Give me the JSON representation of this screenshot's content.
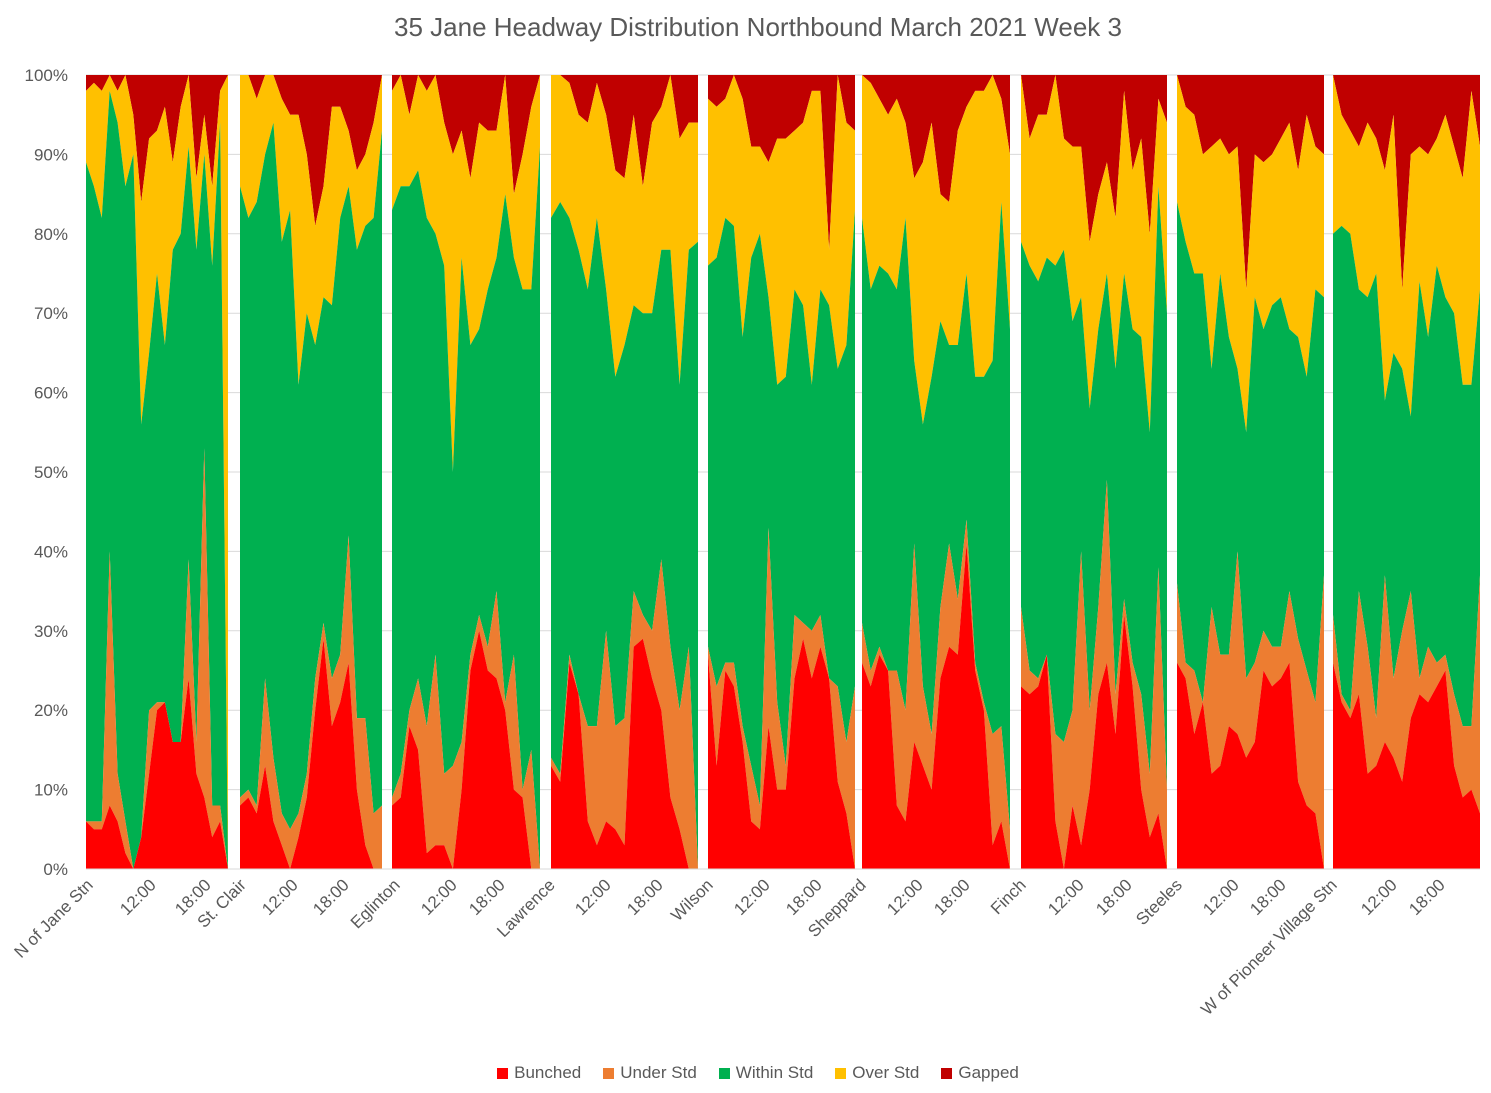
{
  "chart_data": {
    "type": "area",
    "stacked": "percent",
    "title": "35 Jane  Headway Distribution Northbound March 2021 Week 3",
    "xlabel": "",
    "ylabel": "",
    "ylim": [
      0,
      100
    ],
    "y_ticks": [
      "0%",
      "10%",
      "20%",
      "30%",
      "40%",
      "50%",
      "60%",
      "70%",
      "80%",
      "90%",
      "100%"
    ],
    "grid": true,
    "legend_position": "bottom",
    "colors": {
      "Bunched": "#ff0000",
      "Under Std": "#ed7d31",
      "Within Std": "#00b050",
      "Over Std": "#ffc000",
      "Gapped": "#c00000"
    },
    "x_tick_labels": [
      "N of Jane Stn",
      "12:00",
      "18:00",
      "St. Clair",
      "12:00",
      "18:00",
      "Eglinton",
      "12:00",
      "18:00",
      "Lawrence",
      "12:00",
      "18:00",
      "Wilson",
      "12:00",
      "18:00",
      "Sheppard",
      "12:00",
      "18:00",
      "Finch",
      "12:00",
      "18:00",
      "Steeles",
      "12:00",
      "18:00",
      "W of Pioneer Village Stn",
      "12:00",
      "18:00"
    ],
    "stops": [
      {
        "name": "N of Jane Stn",
        "bunched": [
          6,
          5,
          5,
          8,
          6,
          2,
          0,
          4,
          12,
          20,
          21,
          16,
          16,
          24,
          12,
          9,
          4,
          6,
          0
        ],
        "under": [
          6,
          6,
          6,
          40,
          12,
          6,
          0,
          4,
          20,
          21,
          21,
          16,
          16,
          39,
          16,
          53,
          8,
          8,
          0
        ],
        "within": [
          89,
          86,
          82,
          98,
          94,
          86,
          90,
          56,
          65,
          75,
          66,
          78,
          80,
          91,
          78,
          90,
          76,
          94,
          0
        ],
        "over": [
          98,
          99,
          98,
          100,
          98,
          100,
          95,
          84,
          92,
          93,
          96,
          89,
          96,
          100,
          87,
          95,
          86,
          98,
          100
        ]
      },
      {
        "name": "St. Clair",
        "bunched": [
          8,
          9,
          7,
          13,
          6,
          3,
          0,
          4,
          9,
          20,
          29,
          18,
          21,
          26,
          10,
          3,
          0,
          0
        ],
        "under": [
          9,
          10,
          8,
          24,
          14,
          7,
          5,
          7,
          12,
          24,
          31,
          24,
          27,
          42,
          19,
          19,
          7,
          8
        ],
        "within": [
          86,
          82,
          84,
          90,
          94,
          79,
          83,
          61,
          70,
          66,
          72,
          71,
          82,
          86,
          78,
          81,
          82,
          93
        ],
        "over": [
          100,
          100,
          97,
          100,
          100,
          97,
          95,
          95,
          90,
          81,
          86,
          96,
          96,
          93,
          88,
          90,
          94,
          100
        ]
      },
      {
        "name": "Eglinton",
        "bunched": [
          8,
          9,
          18,
          15,
          2,
          3,
          3,
          0,
          10,
          25,
          30,
          25,
          24,
          20,
          10,
          9,
          0,
          0
        ],
        "under": [
          9,
          12,
          20,
          24,
          18,
          27,
          12,
          13,
          16,
          27,
          32,
          28,
          35,
          21,
          27,
          10,
          15,
          0
        ],
        "within": [
          83,
          86,
          86,
          88,
          82,
          80,
          76,
          50,
          77,
          66,
          68,
          73,
          77,
          85,
          77,
          73,
          73,
          91
        ],
        "over": [
          98,
          100,
          95,
          100,
          98,
          100,
          94,
          90,
          93,
          87,
          94,
          93,
          93,
          100,
          85,
          90,
          96,
          100
        ]
      },
      {
        "name": "Lawrence",
        "bunched": [
          13,
          11,
          26,
          22,
          6,
          3,
          6,
          5,
          3,
          28,
          29,
          24,
          20,
          9,
          5,
          0,
          0
        ],
        "under": [
          14,
          12,
          27,
          22,
          18,
          18,
          30,
          18,
          19,
          35,
          32,
          30,
          39,
          28,
          20,
          28,
          0
        ],
        "within": [
          82,
          84,
          82,
          78,
          73,
          82,
          73,
          62,
          66,
          71,
          70,
          70,
          78,
          78,
          61,
          78,
          79
        ],
        "over": [
          100,
          100,
          99,
          95,
          94,
          99,
          95,
          88,
          87,
          95,
          86,
          94,
          96,
          100,
          92,
          94,
          94
        ]
      },
      {
        "name": "Wilson",
        "bunched": [
          27,
          13,
          25,
          23,
          16,
          6,
          5,
          18,
          10,
          10,
          24,
          29,
          24,
          28,
          24,
          11,
          7,
          0
        ],
        "under": [
          28,
          23,
          26,
          26,
          18,
          13,
          8,
          43,
          21,
          13,
          32,
          31,
          30,
          32,
          23,
          23,
          16,
          23
        ],
        "within": [
          76,
          77,
          82,
          81,
          67,
          77,
          80,
          72,
          61,
          62,
          73,
          71,
          61,
          73,
          71,
          63,
          66,
          83
        ],
        "over": [
          97,
          96,
          97,
          100,
          97,
          91,
          91,
          89,
          92,
          92,
          93,
          94,
          98,
          98,
          78,
          100,
          94,
          93
        ]
      },
      {
        "name": "Sheppard",
        "bunched": [
          26,
          23,
          27,
          25,
          8,
          6,
          16,
          13,
          10,
          24,
          28,
          27,
          41,
          25,
          20,
          3,
          6,
          0
        ],
        "under": [
          31,
          25,
          28,
          25,
          25,
          20,
          41,
          23,
          17,
          33,
          41,
          34,
          44,
          26,
          21,
          17,
          18,
          5
        ],
        "within": [
          82,
          73,
          76,
          75,
          73,
          82,
          64,
          56,
          62,
          69,
          66,
          66,
          75,
          62,
          62,
          64,
          84,
          68
        ],
        "over": [
          100,
          99,
          97,
          95,
          97,
          94,
          87,
          89,
          94,
          85,
          84,
          93,
          96,
          98,
          98,
          100,
          97,
          90
        ]
      },
      {
        "name": "Finch",
        "bunched": [
          23,
          22,
          23,
          27,
          6,
          0,
          8,
          3,
          10,
          22,
          26,
          17,
          32,
          23,
          10,
          4,
          7,
          0
        ],
        "under": [
          33,
          25,
          24,
          27,
          17,
          16,
          20,
          40,
          20,
          33,
          49,
          22,
          34,
          26,
          22,
          12,
          38,
          10
        ],
        "within": [
          79,
          76,
          74,
          77,
          76,
          78,
          69,
          72,
          58,
          68,
          75,
          63,
          75,
          68,
          67,
          55,
          86,
          70
        ],
        "over": [
          100,
          92,
          95,
          95,
          100,
          92,
          91,
          91,
          79,
          85,
          89,
          82,
          98,
          88,
          92,
          80,
          97,
          94
        ]
      },
      {
        "name": "Steeles",
        "bunched": [
          26,
          24,
          17,
          21,
          12,
          13,
          18,
          17,
          14,
          16,
          25,
          23,
          24,
          26,
          11,
          8,
          7,
          0
        ],
        "under": [
          36,
          26,
          25,
          21,
          33,
          27,
          27,
          40,
          24,
          26,
          30,
          28,
          28,
          35,
          29,
          25,
          21,
          37
        ],
        "within": [
          84,
          79,
          75,
          75,
          63,
          75,
          67,
          63,
          55,
          72,
          68,
          71,
          72,
          68,
          67,
          62,
          73,
          72
        ],
        "over": [
          100,
          96,
          95,
          90,
          91,
          92,
          90,
          91,
          73,
          90,
          89,
          90,
          92,
          94,
          88,
          95,
          91,
          90
        ]
      },
      {
        "name": "W of Pioneer Village Stn",
        "bunched": [
          26,
          21,
          19,
          22,
          12,
          13,
          16,
          14,
          11,
          19,
          22,
          21,
          23,
          25,
          13,
          9,
          10,
          7
        ],
        "under": [
          32,
          22,
          20,
          35,
          28,
          19,
          37,
          24,
          30,
          35,
          24,
          28,
          26,
          27,
          22,
          18,
          18,
          37
        ],
        "within": [
          80,
          81,
          80,
          73,
          72,
          75,
          59,
          65,
          63,
          57,
          74,
          67,
          76,
          72,
          70,
          61,
          61,
          73
        ],
        "over": [
          100,
          95,
          93,
          91,
          94,
          92,
          88,
          95,
          73,
          90,
          91,
          90,
          92,
          95,
          91,
          87,
          98,
          91
        ]
      }
    ],
    "series": [
      {
        "name": "Bunched"
      },
      {
        "name": "Under Std"
      },
      {
        "name": "Within Std"
      },
      {
        "name": "Over Std"
      },
      {
        "name": "Gapped"
      }
    ]
  }
}
